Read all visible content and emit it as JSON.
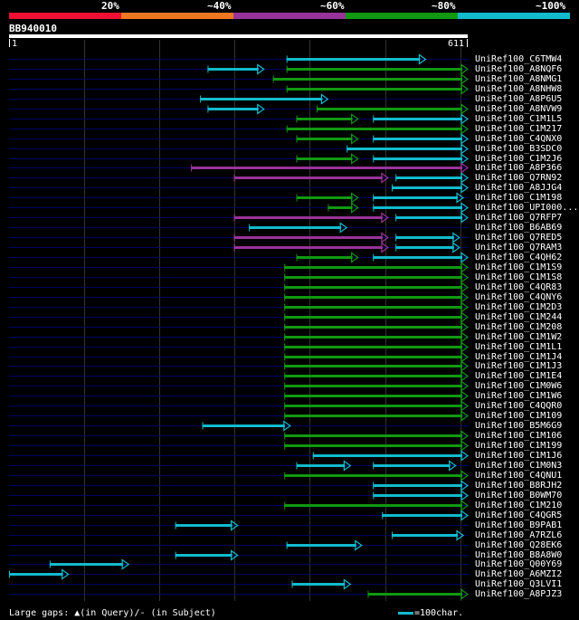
{
  "identity_scale": {
    "segments": [
      {
        "color": "#ee1133"
      },
      {
        "color": "#ee7722"
      },
      {
        "color": "#993399"
      },
      {
        "color": "#119911"
      },
      {
        "color": "#11bbcc"
      }
    ],
    "labels": [
      "20%",
      "~40%",
      "~60%",
      "~80%",
      "~100%"
    ]
  },
  "query": {
    "id": "BB940010",
    "start_label": "1",
    "end_label": "611",
    "length": 611
  },
  "colors": {
    "gap_line": "#000066",
    "gridline": "#333333"
  },
  "hits": [
    {
      "name": "UniRef100_C6TMW4",
      "segs": [
        [
          370,
          555,
          "c"
        ]
      ]
    },
    {
      "name": "UniRef100_A8NQF6",
      "segs": [
        [
          265,
          340,
          "c"
        ],
        [
          370,
          611,
          "g"
        ]
      ]
    },
    {
      "name": "UniRef100_A8NMG1",
      "segs": [
        [
          352,
          611,
          "g"
        ]
      ]
    },
    {
      "name": "UniRef100_A8NHW8",
      "segs": [
        [
          370,
          611,
          "g"
        ]
      ]
    },
    {
      "name": "UniRef100_A8P6U5",
      "segs": [
        [
          255,
          425,
          "c"
        ]
      ]
    },
    {
      "name": "UniRef100_A8NVW9",
      "segs": [
        [
          265,
          340,
          "c"
        ],
        [
          410,
          611,
          "g"
        ]
      ]
    },
    {
      "name": "UniRef100_C1M1L5",
      "segs": [
        [
          383,
          465,
          "g"
        ],
        [
          485,
          611,
          "c"
        ]
      ]
    },
    {
      "name": "UniRef100_C1M217",
      "segs": [
        [
          370,
          611,
          "g"
        ]
      ]
    },
    {
      "name": "UniRef100_C4QNX0",
      "segs": [
        [
          383,
          465,
          "g"
        ],
        [
          485,
          611,
          "c"
        ]
      ]
    },
    {
      "name": "UniRef100_B3SDC0",
      "segs": [
        [
          450,
          611,
          "c"
        ]
      ]
    },
    {
      "name": "UniRef100_C1M2J6",
      "segs": [
        [
          383,
          465,
          "g"
        ],
        [
          485,
          611,
          "c"
        ]
      ]
    },
    {
      "name": "UniRef100_A8P366",
      "segs": [
        [
          243,
          611,
          "p"
        ]
      ]
    },
    {
      "name": "UniRef100_Q7RN92",
      "segs": [
        [
          300,
          505,
          "p"
        ],
        [
          515,
          611,
          "c"
        ]
      ]
    },
    {
      "name": "UniRef100_A8JJG4",
      "segs": [
        [
          510,
          611,
          "c"
        ]
      ]
    },
    {
      "name": "UniRef100_C1M198",
      "segs": [
        [
          383,
          465,
          "g"
        ],
        [
          485,
          605,
          "c"
        ]
      ]
    },
    {
      "name": "UniRef100_UPI000...",
      "segs": [
        [
          425,
          465,
          "g"
        ],
        [
          485,
          611,
          "c"
        ]
      ]
    },
    {
      "name": "UniRef100_Q7RFP7",
      "segs": [
        [
          300,
          505,
          "p"
        ],
        [
          515,
          611,
          "c"
        ]
      ]
    },
    {
      "name": "UniRef100_B6AB69",
      "segs": [
        [
          320,
          450,
          "c"
        ]
      ]
    },
    {
      "name": "UniRef100_Q7RED5",
      "segs": [
        [
          300,
          505,
          "p"
        ],
        [
          515,
          600,
          "c"
        ]
      ]
    },
    {
      "name": "UniRef100_Q7RAM3",
      "segs": [
        [
          300,
          505,
          "p"
        ],
        [
          515,
          600,
          "c"
        ]
      ]
    },
    {
      "name": "UniRef100_C4QH62",
      "segs": [
        [
          383,
          465,
          "g"
        ],
        [
          485,
          611,
          "c"
        ]
      ]
    },
    {
      "name": "UniRef100_C1M1S9",
      "segs": [
        [
          367,
          611,
          "g"
        ]
      ]
    },
    {
      "name": "UniRef100_C1M1S8",
      "segs": [
        [
          367,
          611,
          "g"
        ]
      ]
    },
    {
      "name": "UniRef100_C4QR83",
      "segs": [
        [
          367,
          611,
          "g"
        ]
      ]
    },
    {
      "name": "UniRef100_C4QNY6",
      "segs": [
        [
          367,
          611,
          "g"
        ]
      ]
    },
    {
      "name": "UniRef100_C1M2D3",
      "segs": [
        [
          367,
          611,
          "g"
        ]
      ]
    },
    {
      "name": "UniRef100_C1M244",
      "segs": [
        [
          367,
          611,
          "g"
        ]
      ]
    },
    {
      "name": "UniRef100_C1M208",
      "segs": [
        [
          367,
          611,
          "g"
        ]
      ]
    },
    {
      "name": "UniRef100_C1M1W2",
      "segs": [
        [
          367,
          611,
          "g"
        ]
      ]
    },
    {
      "name": "UniRef100_C1M1L1",
      "segs": [
        [
          367,
          611,
          "g"
        ]
      ]
    },
    {
      "name": "UniRef100_C1M1J4",
      "segs": [
        [
          367,
          611,
          "g"
        ]
      ]
    },
    {
      "name": "UniRef100_C1M1J3",
      "segs": [
        [
          367,
          611,
          "g"
        ]
      ]
    },
    {
      "name": "UniRef100_C1M1E4",
      "segs": [
        [
          367,
          611,
          "g"
        ]
      ]
    },
    {
      "name": "UniRef100_C1M0W6",
      "segs": [
        [
          367,
          611,
          "g"
        ]
      ]
    },
    {
      "name": "UniRef100_C1M1W6",
      "segs": [
        [
          367,
          611,
          "g"
        ]
      ]
    },
    {
      "name": "UniRef100_C4QQR0",
      "segs": [
        [
          367,
          611,
          "g"
        ]
      ]
    },
    {
      "name": "UniRef100_C1M109",
      "segs": [
        [
          367,
          611,
          "g"
        ]
      ]
    },
    {
      "name": "UniRef100_B5M6G9",
      "segs": [
        [
          258,
          375,
          "c"
        ]
      ]
    },
    {
      "name": "UniRef100_C1M106",
      "segs": [
        [
          367,
          611,
          "g"
        ]
      ]
    },
    {
      "name": "UniRef100_C1M199",
      "segs": [
        [
          367,
          611,
          "g"
        ]
      ]
    },
    {
      "name": "UniRef100_C1M1J6",
      "segs": [
        [
          405,
          611,
          "c"
        ]
      ]
    },
    {
      "name": "UniRef100_C1M0N3",
      "segs": [
        [
          383,
          455,
          "c"
        ],
        [
          485,
          595,
          "c"
        ]
      ]
    },
    {
      "name": "UniRef100_C4QNU1",
      "segs": [
        [
          367,
          611,
          "g"
        ]
      ]
    },
    {
      "name": "UniRef100_B8RJH2",
      "segs": [
        [
          485,
          611,
          "c"
        ]
      ]
    },
    {
      "name": "UniRef100_B0WM70",
      "segs": [
        [
          485,
          611,
          "c"
        ]
      ]
    },
    {
      "name": "UniRef100_C1M210",
      "segs": [
        [
          367,
          611,
          "g"
        ]
      ]
    },
    {
      "name": "UniRef100_C4QGR5",
      "segs": [
        [
          497,
          611,
          "c"
        ]
      ]
    },
    {
      "name": "UniRef100_B9PAB1",
      "segs": [
        [
          222,
          305,
          "c"
        ]
      ]
    },
    {
      "name": "UniRef100_A7RZL6",
      "segs": [
        [
          510,
          605,
          "c"
        ]
      ]
    },
    {
      "name": "UniRef100_Q28EK6",
      "segs": [
        [
          370,
          470,
          "c"
        ]
      ]
    },
    {
      "name": "UniRef100_B8A8W0",
      "segs": [
        [
          222,
          305,
          "c"
        ]
      ]
    },
    {
      "name": "UniRef100_Q00Y69",
      "segs": [
        [
          55,
          160,
          "c"
        ]
      ]
    },
    {
      "name": "UniRef100_A6MZI2",
      "segs": [
        [
          1,
          80,
          "c"
        ]
      ]
    },
    {
      "name": "UniRef100_Q3LVI1",
      "segs": [
        [
          377,
          455,
          "c"
        ]
      ]
    },
    {
      "name": "UniRef100_A8PJZ3",
      "segs": [
        [
          478,
          611,
          "g"
        ]
      ]
    }
  ],
  "footer": {
    "legend_text": "Large gaps: ▲(in Query)/- (in Subject)",
    "scale_text": "=100char."
  }
}
